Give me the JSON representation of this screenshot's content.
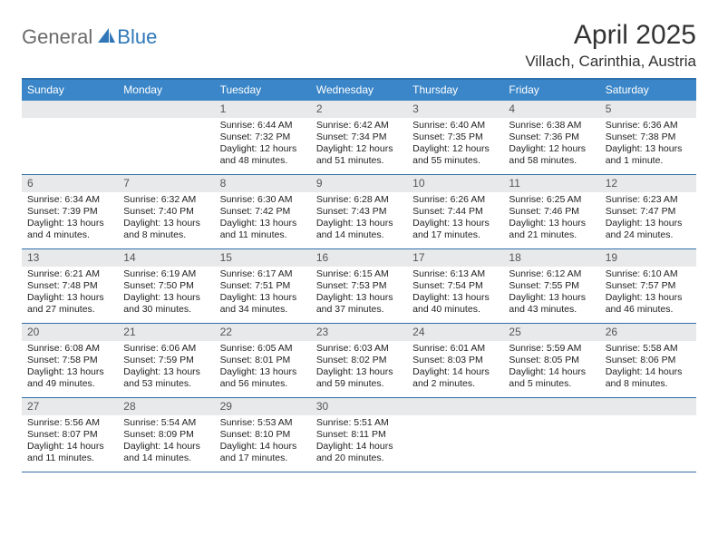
{
  "logo": {
    "part1": "General",
    "part2": "Blue"
  },
  "title": "April 2025",
  "location": "Villach, Carinthia, Austria",
  "header_bg": "#3a86c8",
  "border_color": "#2f6fa9",
  "daynum_bg": "#e8e9ea",
  "weekdays": [
    "Sunday",
    "Monday",
    "Tuesday",
    "Wednesday",
    "Thursday",
    "Friday",
    "Saturday"
  ],
  "weeks": [
    [
      null,
      null,
      {
        "n": "1",
        "sr": "6:44 AM",
        "ss": "7:32 PM",
        "dl": "12 hours and 48 minutes."
      },
      {
        "n": "2",
        "sr": "6:42 AM",
        "ss": "7:34 PM",
        "dl": "12 hours and 51 minutes."
      },
      {
        "n": "3",
        "sr": "6:40 AM",
        "ss": "7:35 PM",
        "dl": "12 hours and 55 minutes."
      },
      {
        "n": "4",
        "sr": "6:38 AM",
        "ss": "7:36 PM",
        "dl": "12 hours and 58 minutes."
      },
      {
        "n": "5",
        "sr": "6:36 AM",
        "ss": "7:38 PM",
        "dl": "13 hours and 1 minute."
      }
    ],
    [
      {
        "n": "6",
        "sr": "6:34 AM",
        "ss": "7:39 PM",
        "dl": "13 hours and 4 minutes."
      },
      {
        "n": "7",
        "sr": "6:32 AM",
        "ss": "7:40 PM",
        "dl": "13 hours and 8 minutes."
      },
      {
        "n": "8",
        "sr": "6:30 AM",
        "ss": "7:42 PM",
        "dl": "13 hours and 11 minutes."
      },
      {
        "n": "9",
        "sr": "6:28 AM",
        "ss": "7:43 PM",
        "dl": "13 hours and 14 minutes."
      },
      {
        "n": "10",
        "sr": "6:26 AM",
        "ss": "7:44 PM",
        "dl": "13 hours and 17 minutes."
      },
      {
        "n": "11",
        "sr": "6:25 AM",
        "ss": "7:46 PM",
        "dl": "13 hours and 21 minutes."
      },
      {
        "n": "12",
        "sr": "6:23 AM",
        "ss": "7:47 PM",
        "dl": "13 hours and 24 minutes."
      }
    ],
    [
      {
        "n": "13",
        "sr": "6:21 AM",
        "ss": "7:48 PM",
        "dl": "13 hours and 27 minutes."
      },
      {
        "n": "14",
        "sr": "6:19 AM",
        "ss": "7:50 PM",
        "dl": "13 hours and 30 minutes."
      },
      {
        "n": "15",
        "sr": "6:17 AM",
        "ss": "7:51 PM",
        "dl": "13 hours and 34 minutes."
      },
      {
        "n": "16",
        "sr": "6:15 AM",
        "ss": "7:53 PM",
        "dl": "13 hours and 37 minutes."
      },
      {
        "n": "17",
        "sr": "6:13 AM",
        "ss": "7:54 PM",
        "dl": "13 hours and 40 minutes."
      },
      {
        "n": "18",
        "sr": "6:12 AM",
        "ss": "7:55 PM",
        "dl": "13 hours and 43 minutes."
      },
      {
        "n": "19",
        "sr": "6:10 AM",
        "ss": "7:57 PM",
        "dl": "13 hours and 46 minutes."
      }
    ],
    [
      {
        "n": "20",
        "sr": "6:08 AM",
        "ss": "7:58 PM",
        "dl": "13 hours and 49 minutes."
      },
      {
        "n": "21",
        "sr": "6:06 AM",
        "ss": "7:59 PM",
        "dl": "13 hours and 53 minutes."
      },
      {
        "n": "22",
        "sr": "6:05 AM",
        "ss": "8:01 PM",
        "dl": "13 hours and 56 minutes."
      },
      {
        "n": "23",
        "sr": "6:03 AM",
        "ss": "8:02 PM",
        "dl": "13 hours and 59 minutes."
      },
      {
        "n": "24",
        "sr": "6:01 AM",
        "ss": "8:03 PM",
        "dl": "14 hours and 2 minutes."
      },
      {
        "n": "25",
        "sr": "5:59 AM",
        "ss": "8:05 PM",
        "dl": "14 hours and 5 minutes."
      },
      {
        "n": "26",
        "sr": "5:58 AM",
        "ss": "8:06 PM",
        "dl": "14 hours and 8 minutes."
      }
    ],
    [
      {
        "n": "27",
        "sr": "5:56 AM",
        "ss": "8:07 PM",
        "dl": "14 hours and 11 minutes."
      },
      {
        "n": "28",
        "sr": "5:54 AM",
        "ss": "8:09 PM",
        "dl": "14 hours and 14 minutes."
      },
      {
        "n": "29",
        "sr": "5:53 AM",
        "ss": "8:10 PM",
        "dl": "14 hours and 17 minutes."
      },
      {
        "n": "30",
        "sr": "5:51 AM",
        "ss": "8:11 PM",
        "dl": "14 hours and 20 minutes."
      },
      null,
      null,
      null
    ]
  ],
  "labels": {
    "sunrise": "Sunrise:",
    "sunset": "Sunset:",
    "daylight": "Daylight:"
  }
}
